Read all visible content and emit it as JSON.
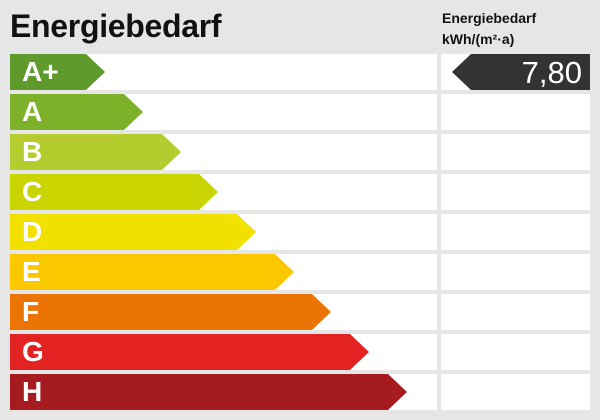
{
  "title": "Energiebedarf",
  "unit_label": {
    "line1": "Energiebedarf",
    "line2": "kWh/(m²·a)"
  },
  "classes": [
    {
      "label": "A+",
      "color": "#5e9b2c",
      "length": 95
    },
    {
      "label": "A",
      "color": "#7db12a",
      "length": 133
    },
    {
      "label": "B",
      "color": "#b5cc2e",
      "length": 171
    },
    {
      "label": "C",
      "color": "#cad400",
      "length": 208
    },
    {
      "label": "D",
      "color": "#f1e000",
      "length": 246
    },
    {
      "label": "E",
      "color": "#fbc800",
      "length": 284
    },
    {
      "label": "F",
      "color": "#ec7404",
      "length": 321
    },
    {
      "label": "G",
      "color": "#e32321",
      "length": 359
    },
    {
      "label": "H",
      "color": "#a51b20",
      "length": 397
    }
  ],
  "indicator": {
    "value": "7,80",
    "class": "A+",
    "color": "#333333"
  }
}
